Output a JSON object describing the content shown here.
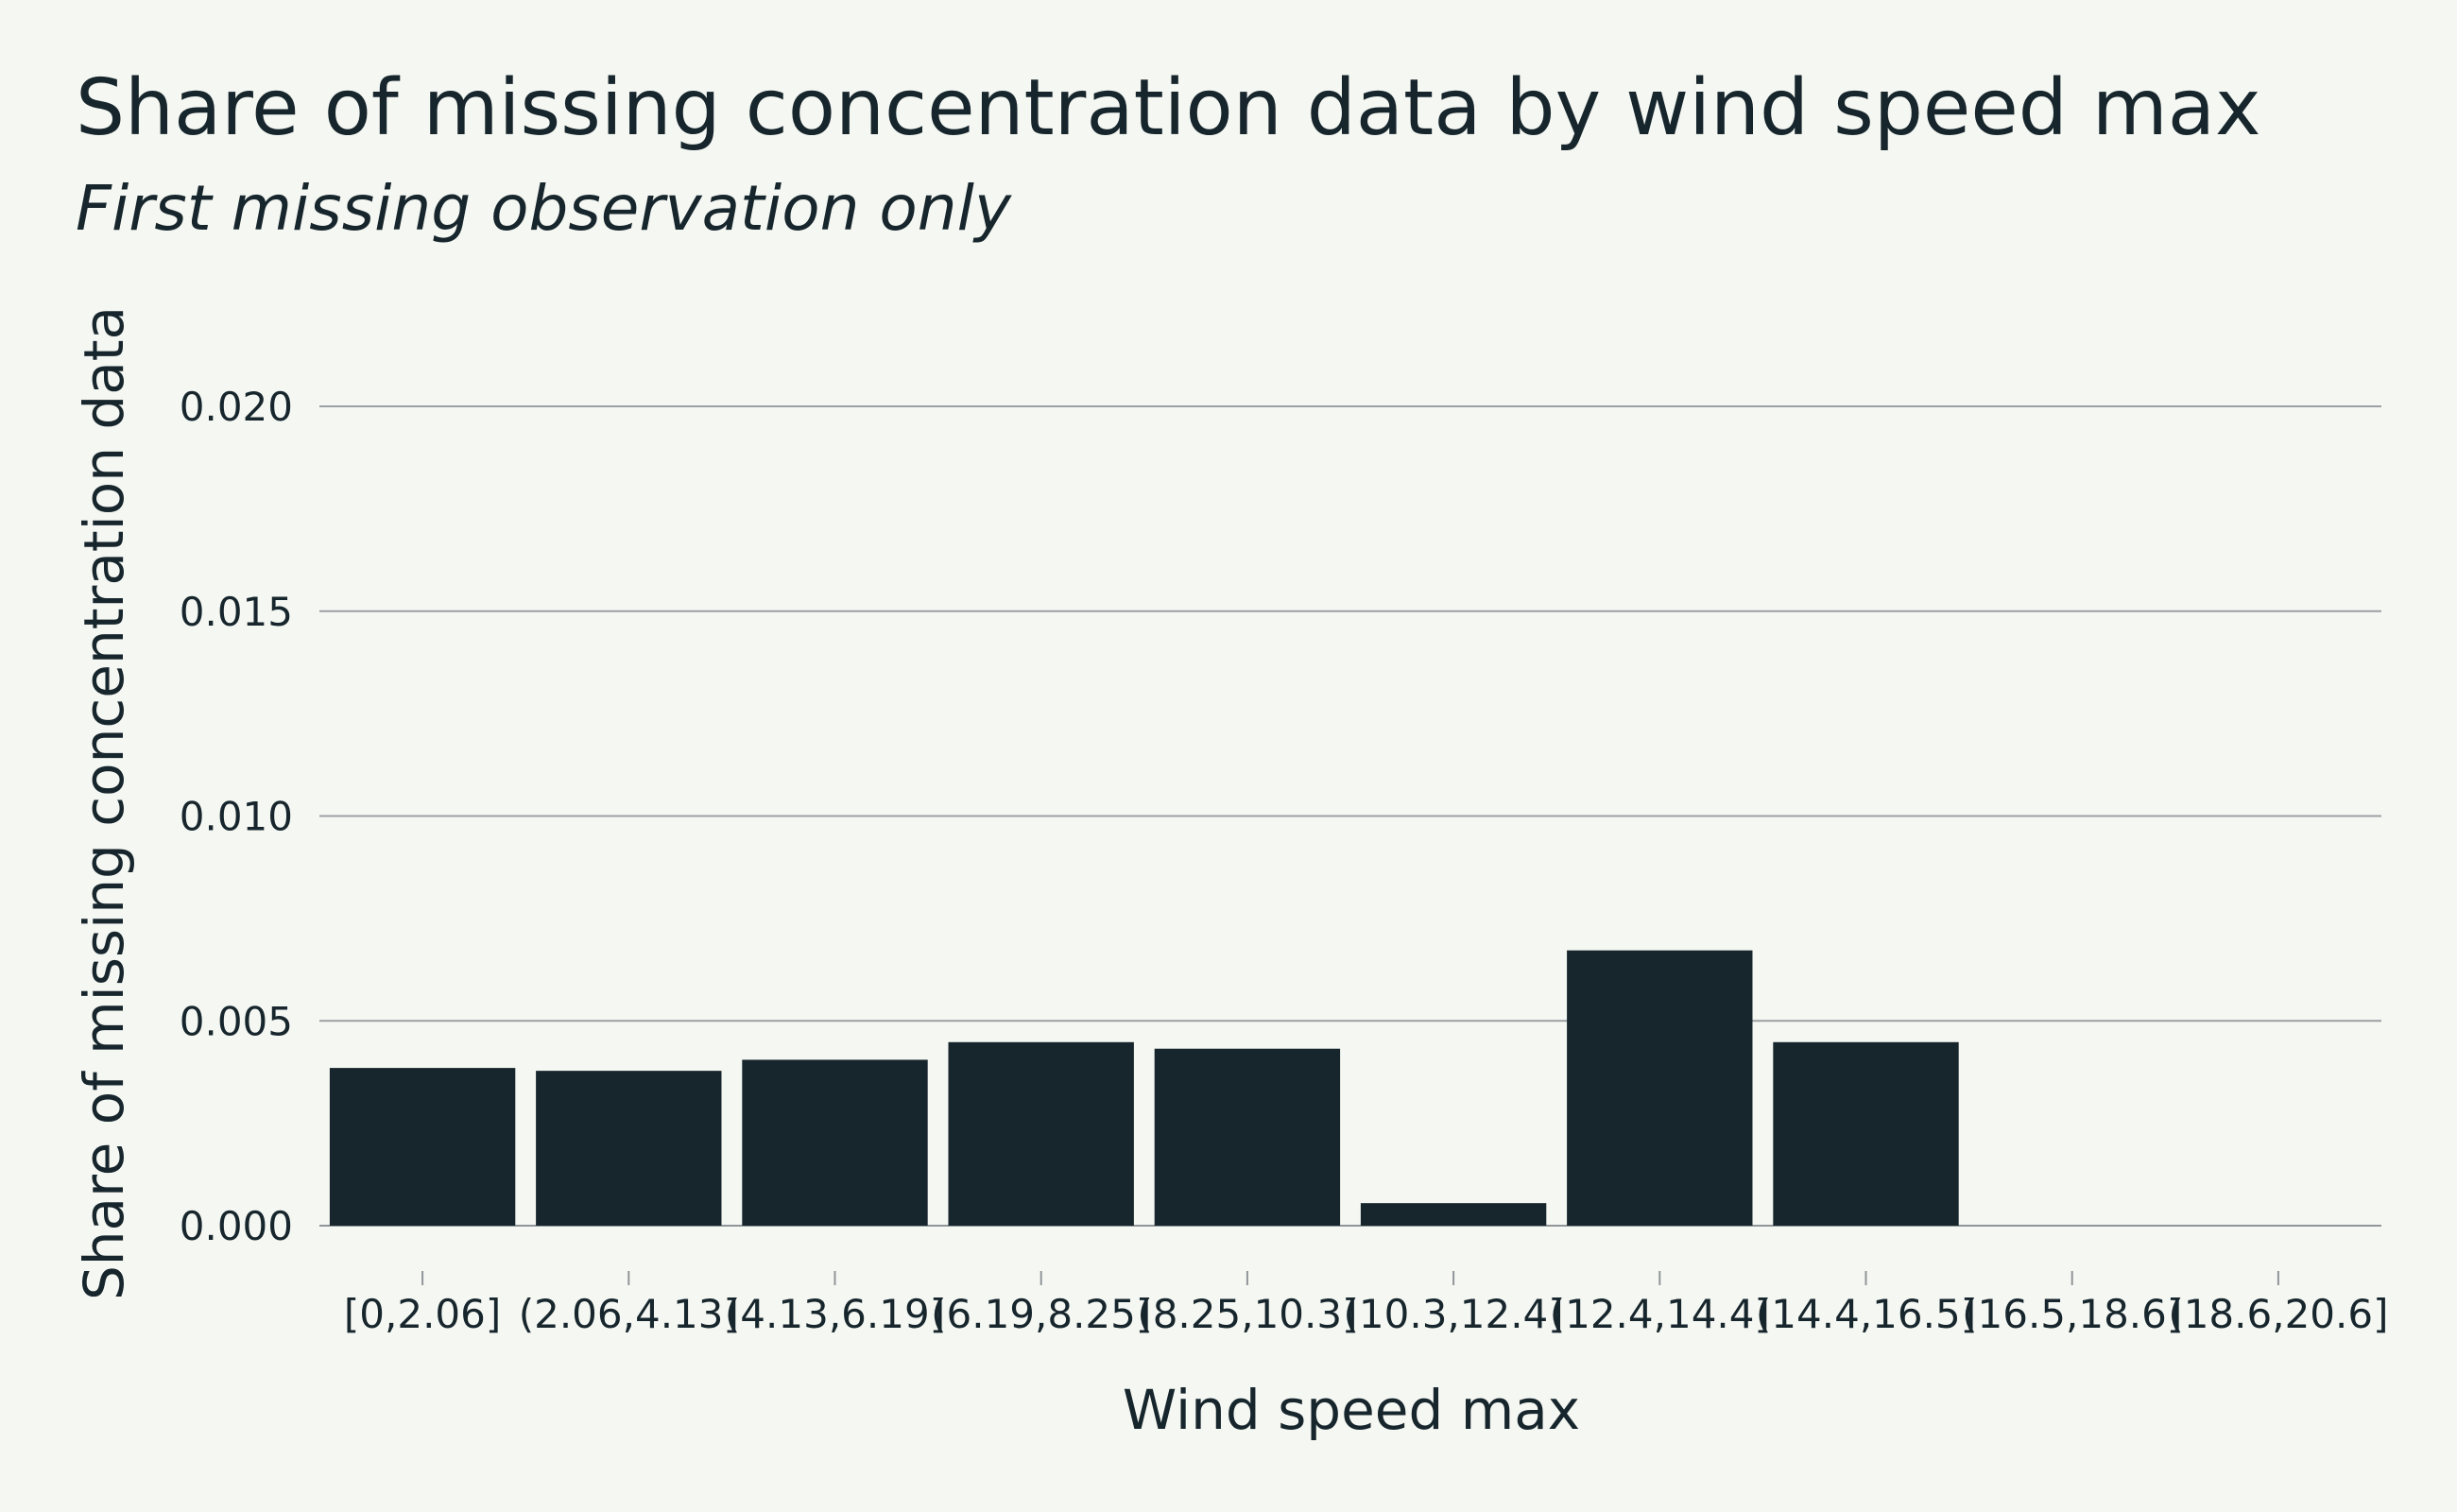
{
  "chart_data": {
    "type": "bar",
    "title": "Share of missing concentration data by wind speed max",
    "subtitle": "First missing observation only",
    "xlabel": "Wind speed max",
    "ylabel": "Share of missing concentration data",
    "categories": [
      "[0,2.06]",
      "(2.06,4.13]",
      "(4.13,6.19]",
      "(6.19,8.25]",
      "(8.25,10.3]",
      "(10.3,12.4]",
      "(12.4,14.4]",
      "(14.4,16.5]",
      "(16.5,18.6]",
      "(18.6,20.6]"
    ],
    "values": [
      0.00385,
      0.00378,
      0.00405,
      0.00448,
      0.00432,
      0.00055,
      0.00672,
      0.00448,
      0,
      0
    ],
    "ylim": [
      0,
      0.0215
    ],
    "yticks": [
      "0.000",
      "0.005",
      "0.010",
      "0.015",
      "0.020"
    ],
    "ytick_values": [
      0,
      0.005,
      0.01,
      0.015,
      0.02
    ],
    "grid": true,
    "legend": "none",
    "colors": {
      "bar": "#17262d",
      "background": "#f5f7f2",
      "grid": "#9aa0a3",
      "text": "#17262d"
    }
  }
}
